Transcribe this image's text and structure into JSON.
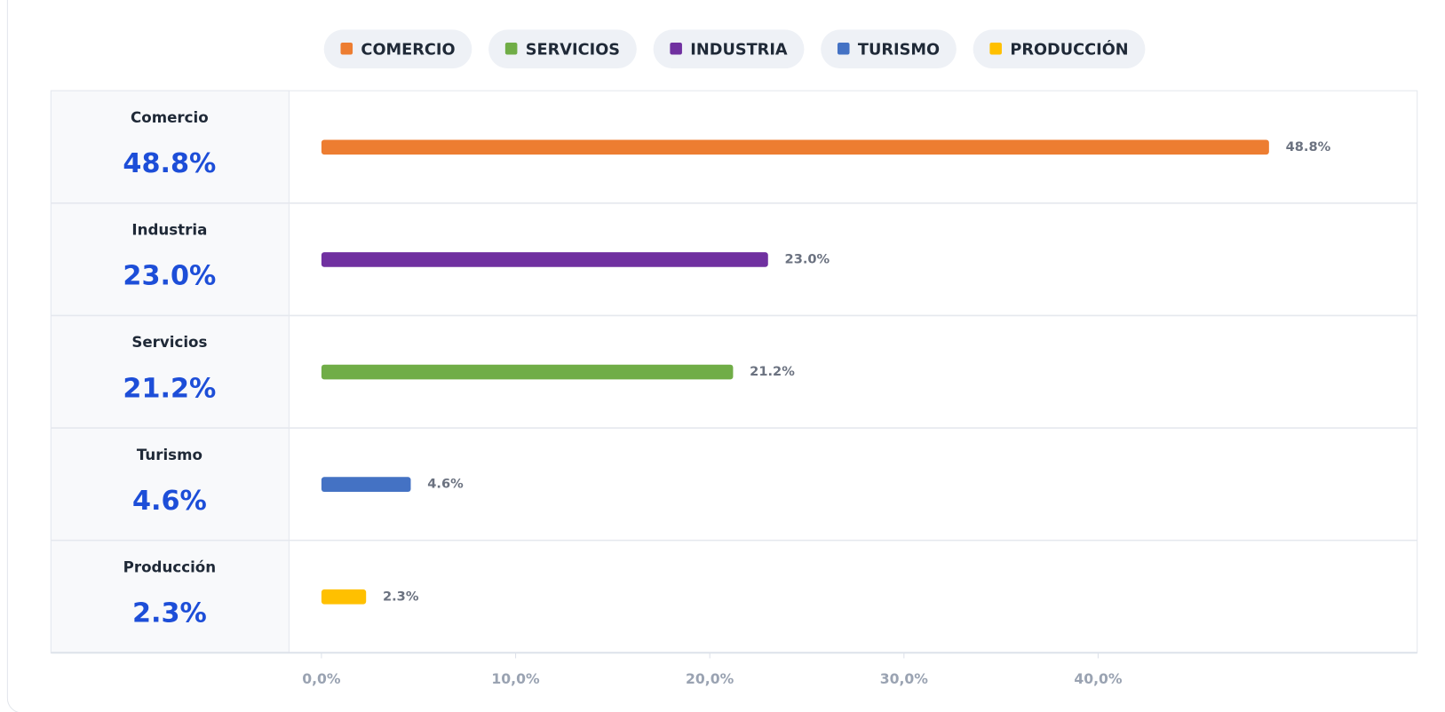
{
  "chart_data": {
    "type": "bar",
    "orientation": "horizontal",
    "legend": [
      {
        "name": "COMERCIO",
        "color": "#ed7d31"
      },
      {
        "name": "SERVICIOS",
        "color": "#70ad47"
      },
      {
        "name": "INDUSTRIA",
        "color": "#7030a0"
      },
      {
        "name": "TURISMO",
        "color": "#4472c4"
      },
      {
        "name": "PRODUCCIÓN",
        "color": "#ffc000"
      }
    ],
    "categories": [
      "Comercio",
      "Industria",
      "Servicios",
      "Turismo",
      "Producción"
    ],
    "values": [
      48.8,
      23.0,
      21.2,
      4.6,
      2.3
    ],
    "value_labels": [
      "48.8%",
      "23.0%",
      "21.2%",
      "4.6%",
      "2.3%"
    ],
    "colors": [
      "#ed7d31",
      "#7030a0",
      "#70ad47",
      "#4472c4",
      "#ffc000"
    ],
    "xlim": [
      0,
      55
    ],
    "xticks": [
      {
        "value": 0,
        "label": "0,0%"
      },
      {
        "value": 10,
        "label": "10,0%"
      },
      {
        "value": 20,
        "label": "20,0%"
      },
      {
        "value": 30,
        "label": "30,0%"
      },
      {
        "value": 40,
        "label": "40,0%"
      }
    ]
  }
}
